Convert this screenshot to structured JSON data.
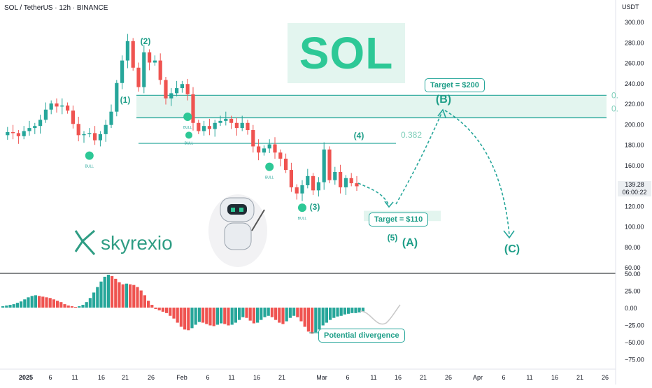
{
  "header": {
    "symbol_line": "SOL / TetherUS · 12h · BINANCE",
    "currency": "USDT"
  },
  "big_label": "SOL",
  "brand": "skyrexio",
  "price_badge": {
    "price": "139.28",
    "countdown": "06:00:22"
  },
  "colors": {
    "bull": "#26a69a",
    "bear": "#ef5350",
    "accent": "#2dc896",
    "zone": "#e3f5ef"
  },
  "chart_data": [
    {
      "type": "line",
      "title": "",
      "axis": {
        "y_ticks": [
          "300.00",
          "280.00",
          "260.00",
          "240.00",
          "220.00",
          "200.00",
          "180.00",
          "160.00",
          "140.00",
          "120.00",
          "100.00",
          "80.00",
          "60.00"
        ],
        "ylim": [
          60,
          300
        ]
      },
      "x_ticks": [
        "2025",
        "6",
        "11",
        "16",
        "21",
        "26",
        "Feb",
        "6",
        "11",
        "16",
        "21",
        "Mar",
        "6",
        "11",
        "16",
        "21",
        "26",
        "Apr",
        "6",
        "11",
        "16",
        "21",
        "26"
      ],
      "series": [
        {
          "values": [
            189,
            192,
            191,
            188,
            193,
            196,
            198,
            204,
            214,
            220,
            217,
            218,
            213,
            200,
            189,
            190,
            191,
            184,
            190,
            199,
            212,
            240,
            262,
            281,
            255,
            236,
            270,
            260,
            262,
            243,
            225,
            230,
            235,
            239,
            229,
            201,
            193,
            198,
            195,
            201,
            203,
            205,
            201,
            196,
            201,
            194,
            178,
            172,
            176,
            180,
            172,
            166,
            155,
            138,
            132,
            140,
            149,
            135,
            143,
            175,
            145,
            153,
            138,
            147,
            142,
            139
          ]
        }
      ],
      "wave_labels": [
        "(1)",
        "(2)",
        "(3)",
        "(4)",
        "(5)",
        "(A)",
        "(B)",
        "(C)"
      ],
      "bull_markers": [
        "BULL",
        "BULL",
        "BULL",
        "BULL",
        "BULL"
      ],
      "levels": {
        "resistance_zone": [
          206,
          228
        ],
        "fib_382": 181,
        "fib_label": "0.382",
        "side_labels": [
          "0.",
          "0."
        ]
      },
      "targets": [
        "Target = $200",
        "Target = $110"
      ],
      "target_values": [
        200,
        110
      ]
    },
    {
      "type": "bar",
      "title": "",
      "axis": {
        "y_ticks": [
          "50.00",
          "25.00",
          "0.00",
          "−25.00",
          "−50.00",
          "−75.00"
        ],
        "ylim": [
          -75,
          50
        ]
      },
      "values": [
        2,
        3,
        4,
        5,
        7,
        9,
        12,
        15,
        17,
        18,
        17,
        16,
        15,
        14,
        12,
        10,
        8,
        5,
        3,
        2,
        1,
        2,
        4,
        8,
        14,
        22,
        30,
        38,
        45,
        48,
        46,
        42,
        37,
        34,
        35,
        34,
        33,
        30,
        25,
        18,
        10,
        4,
        -2,
        -4,
        -6,
        -8,
        -12,
        -16,
        -22,
        -28,
        -32,
        -33,
        -30,
        -25,
        -21,
        -22,
        -24,
        -26,
        -27,
        -25,
        -23,
        -24,
        -26,
        -25,
        -22,
        -18,
        -14,
        -15,
        -19,
        -23,
        -22,
        -18,
        -14,
        -12,
        -14,
        -18,
        -22,
        -24,
        -20,
        -15,
        -12,
        -14,
        -20,
        -28,
        -35,
        -38,
        -36,
        -32,
        -26,
        -22,
        -18,
        -15,
        -13,
        -12,
        -10,
        -9,
        -8,
        -8,
        -7,
        -6
      ],
      "annotation": "Potential divergence"
    }
  ]
}
